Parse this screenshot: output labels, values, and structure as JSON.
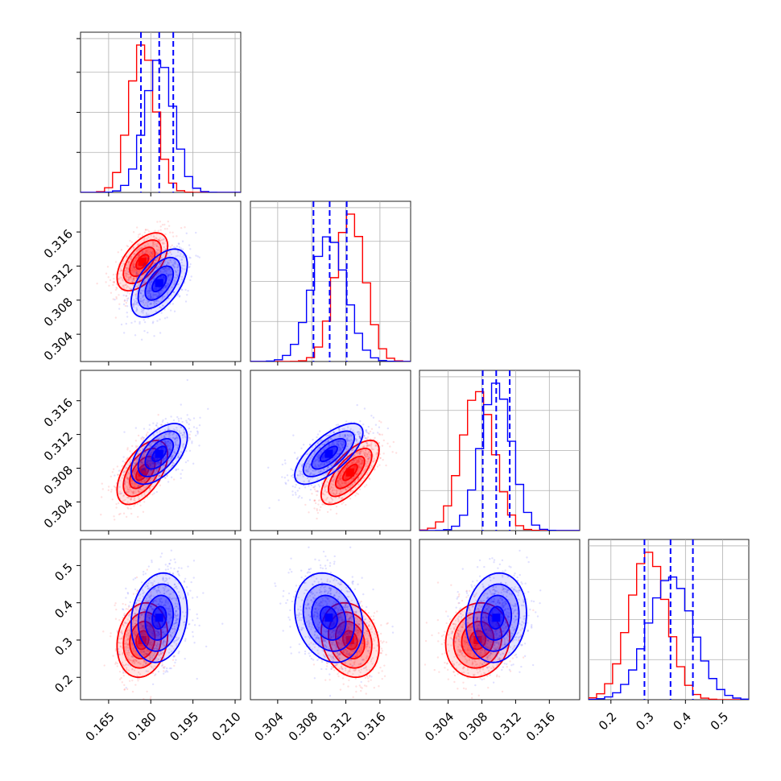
{
  "chart_data": {
    "type": "corner",
    "title": "",
    "parameters": [
      {
        "range": [
          0.155,
          0.212
        ],
        "ticks": [
          0.165,
          0.18,
          0.195,
          0.21
        ],
        "tick_labels": [
          "0.165",
          "0.180",
          "0.195",
          "0.210"
        ]
      },
      {
        "range": [
          0.3008,
          0.3196
        ],
        "ticks": [
          0.304,
          0.308,
          0.312,
          0.316
        ],
        "tick_labels": [
          "0.304",
          "0.308",
          "0.312",
          "0.316"
        ]
      },
      {
        "range": [
          0.3006,
          0.3196
        ],
        "ticks": [
          0.304,
          0.308,
          0.312,
          0.316
        ],
        "tick_labels": [
          "0.304",
          "0.308",
          "0.312",
          "0.316"
        ]
      },
      {
        "range": [
          0.14,
          0.57
        ],
        "ticks": [
          0.2,
          0.3,
          0.4,
          0.5
        ],
        "tick_labels": [
          "0.2",
          "0.3",
          "0.4",
          "0.5"
        ]
      }
    ],
    "series": [
      {
        "color": "#ff0000",
        "means": [
          0.177,
          0.3125,
          0.3075,
          0.3
        ],
        "sigmas": [
          0.0045,
          0.0017,
          0.0019,
          0.05
        ],
        "correlations": [
          [
            0,
            1,
            0.55
          ],
          [
            0,
            2,
            0.55
          ],
          [
            0,
            3,
            0.15
          ],
          [
            1,
            2,
            0.7
          ],
          [
            1,
            3,
            -0.2
          ],
          [
            2,
            3,
            0.1
          ]
        ]
      },
      {
        "color": "#0000ff",
        "means": [
          0.183,
          0.31,
          0.3097,
          0.36
        ],
        "sigmas": [
          0.005,
          0.002,
          0.0018,
          0.06
        ],
        "correlations": [
          [
            0,
            1,
            0.55
          ],
          [
            0,
            2,
            0.55
          ],
          [
            0,
            3,
            0.15
          ],
          [
            1,
            2,
            0.7
          ],
          [
            1,
            3,
            -0.2
          ],
          [
            2,
            3,
            0.1
          ]
        ]
      }
    ],
    "quantile_lines": {
      "color": "#0000ff",
      "values": [
        [
          0.1765,
          0.183,
          0.188
        ],
        [
          0.3082,
          0.3101,
          0.3121
        ],
        [
          0.3081,
          0.3097,
          0.3113
        ],
        [
          0.29,
          0.36,
          0.42
        ]
      ]
    },
    "levels_sigma": [
      0.5,
      1.0,
      1.5,
      2.0
    ],
    "grid": true,
    "legend": "none",
    "xlabel": "",
    "ylabel": ""
  }
}
